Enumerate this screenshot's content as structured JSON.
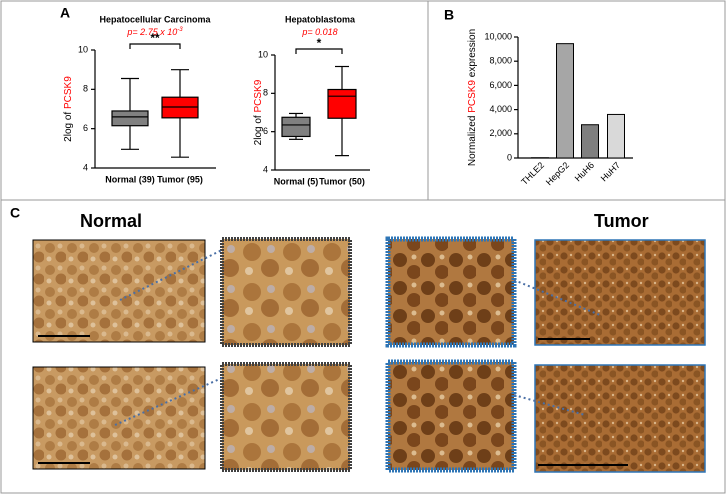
{
  "panels": {
    "a": "A",
    "b": "B",
    "c": "C"
  },
  "chart_data": [
    {
      "type": "box",
      "title": "Hepatocellular Carcinoma",
      "p_value": "p= 2.75 x 10",
      "p_exponent": "-3",
      "significance": "**",
      "ylabel": "2log of ",
      "ylabel_highlight": "PCSK9",
      "categories": [
        "Normal (39)",
        "Tumor (95)"
      ],
      "colors": [
        "#808080",
        "#ff0000"
      ],
      "boxes": [
        {
          "min": 4.95,
          "q1": 6.15,
          "median": 6.6,
          "q3": 6.9,
          "max": 8.55
        },
        {
          "min": 4.55,
          "q1": 6.55,
          "median": 7.1,
          "q3": 7.6,
          "max": 9.0
        }
      ],
      "ylim": [
        4,
        10
      ],
      "yticks": [
        4,
        6,
        8,
        10
      ]
    },
    {
      "type": "box",
      "title": "Hepatoblastoma",
      "p_value": "p= 0.018",
      "significance": "*",
      "ylabel": "2log of ",
      "ylabel_highlight": "PCSK9",
      "categories": [
        "Normal (5)",
        "Tumor (50)"
      ],
      "colors": [
        "#808080",
        "#ff0000"
      ],
      "boxes": [
        {
          "min": 5.6,
          "q1": 5.75,
          "median": 6.35,
          "q3": 6.75,
          "max": 6.95
        },
        {
          "min": 4.75,
          "q1": 6.7,
          "median": 7.85,
          "q3": 8.2,
          "max": 9.4
        }
      ],
      "ylim": [
        4,
        10
      ],
      "yticks": [
        4,
        6,
        8,
        10
      ]
    },
    {
      "type": "bar",
      "ylabel": "Normalized ",
      "ylabel_highlight": "PCSK9",
      "ylabel_end": " expression",
      "categories": [
        "THLE2",
        "HepG2",
        "HuH6",
        "HuH7"
      ],
      "values": [
        20,
        9450,
        2750,
        3600
      ],
      "colors": [
        "#d9d9d9",
        "#a6a6a6",
        "#7f7f7f",
        "#d9d9d9"
      ],
      "ylim": [
        0,
        10000
      ],
      "yticks": [
        0,
        {
          "value": 2000,
          "label": "2,000"
        },
        {
          "value": 4000,
          "label": "4,000"
        },
        {
          "value": 6000,
          "label": "6,000"
        },
        {
          "value": 8000,
          "label": "8,000"
        },
        {
          "value": 10000,
          "label": "10,000"
        }
      ]
    }
  ],
  "images": {
    "normal_label": "Normal",
    "tumor_label": "Tumor"
  }
}
